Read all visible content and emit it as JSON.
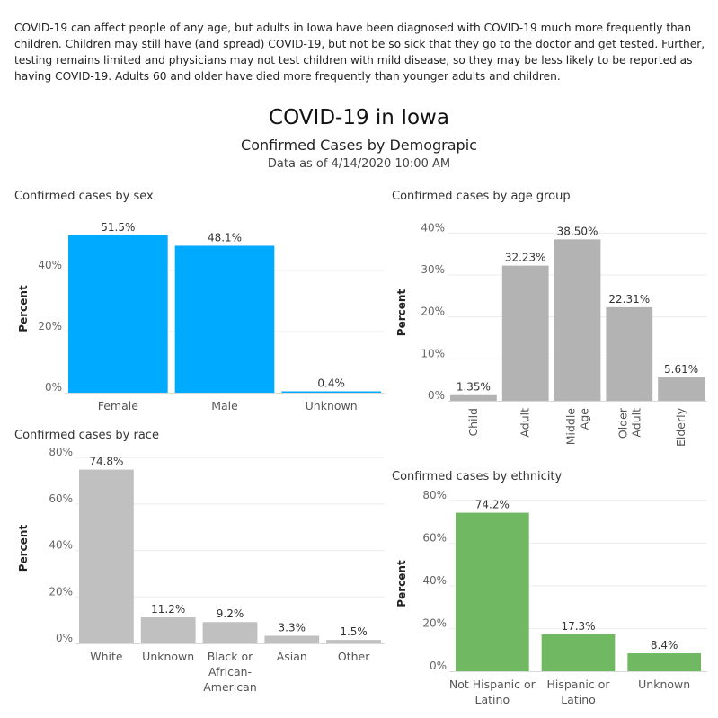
{
  "intro_text": "COVID-19 can affect people of any age, but adults in Iowa have been diagnosed with COVID-19 much more frequently than children. Children may still have (and spread) COVID-19, but not be so sick that they go to the doctor and get tested. Further, testing remains limited and physicians may not test children with mild disease, so they may be less likely to be reported as having COVID-19. Adults 60 and older have died more frequently than younger adults and children.",
  "title": "COVID-19 in Iowa",
  "subtitle": "Confirmed Cases by Demograpic",
  "dateline": "Data as of 4/14/2020 10:00 AM",
  "chart_data": [
    {
      "id": "sex",
      "type": "bar",
      "title": "Confirmed cases by sex",
      "ylabel": "Percent",
      "ylim": [
        0,
        55
      ],
      "yticks": [
        0,
        20,
        40
      ],
      "ytick_labels": [
        "0%",
        "20%",
        "40%"
      ],
      "categories": [
        "Female",
        "Male",
        "Unknown"
      ],
      "category_lines": [
        [
          "Female"
        ],
        [
          "Male"
        ],
        [
          "Unknown"
        ]
      ],
      "values": [
        51.5,
        48.1,
        0.4
      ],
      "data_labels": [
        "51.5%",
        "48.1%",
        "0.4%"
      ],
      "color": "#00aaff",
      "grid": true
    },
    {
      "id": "age",
      "type": "bar",
      "title": "Confirmed cases by age group",
      "ylabel": "Percent",
      "ylim": [
        0,
        42
      ],
      "yticks": [
        0,
        10,
        20,
        30,
        40
      ],
      "ytick_labels": [
        "0%",
        "10%",
        "20%",
        "30%",
        "40%"
      ],
      "categories": [
        "Child",
        "Adult",
        "Middle Age",
        "Older Adult",
        "Elderly"
      ],
      "category_lines": [
        [
          "Child"
        ],
        [
          "Adult"
        ],
        [
          "Middle",
          "Age"
        ],
        [
          "Older",
          "Adult"
        ],
        [
          "Elderly"
        ]
      ],
      "values": [
        1.35,
        32.23,
        38.5,
        22.31,
        5.61
      ],
      "data_labels": [
        "1.35%",
        "32.23%",
        "38.50%",
        "22.31%",
        "5.61%"
      ],
      "color": "#b3b3b3",
      "grid": true
    },
    {
      "id": "race",
      "type": "bar",
      "title": "Confirmed cases by race",
      "ylabel": "Percent",
      "ylim": [
        0,
        82
      ],
      "yticks": [
        0,
        20,
        40,
        60,
        80
      ],
      "ytick_labels": [
        "0%",
        "20%",
        "40%",
        "60%",
        "80%"
      ],
      "categories": [
        "White",
        "Unknown",
        "Black or African-American",
        "Asian",
        "Other"
      ],
      "category_lines": [
        [
          "White"
        ],
        [
          "Unknown"
        ],
        [
          "Black or",
          "African-",
          "American"
        ],
        [
          "Asian"
        ],
        [
          "Other"
        ]
      ],
      "values": [
        74.8,
        11.2,
        9.2,
        3.3,
        1.5
      ],
      "data_labels": [
        "74.8%",
        "11.2%",
        "9.2%",
        "3.3%",
        "1.5%"
      ],
      "color": "#c0c0c0",
      "grid": true
    },
    {
      "id": "ethnicity",
      "type": "bar",
      "title": "Confirmed cases by ethnicity",
      "ylabel": "Percent",
      "ylim": [
        0,
        82
      ],
      "yticks": [
        0,
        20,
        40,
        60,
        80
      ],
      "ytick_labels": [
        "0%",
        "20%",
        "40%",
        "60%",
        "80%"
      ],
      "categories": [
        "Not Hispanic or Latino",
        "Hispanic or Latino",
        "Unknown"
      ],
      "category_lines": [
        [
          "Not Hispanic or",
          "Latino"
        ],
        [
          "Hispanic or",
          "Latino"
        ],
        [
          "Unknown"
        ]
      ],
      "values": [
        74.2,
        17.3,
        8.4
      ],
      "data_labels": [
        "74.2%",
        "17.3%",
        "8.4%"
      ],
      "color": "#70b962",
      "grid": true
    }
  ]
}
